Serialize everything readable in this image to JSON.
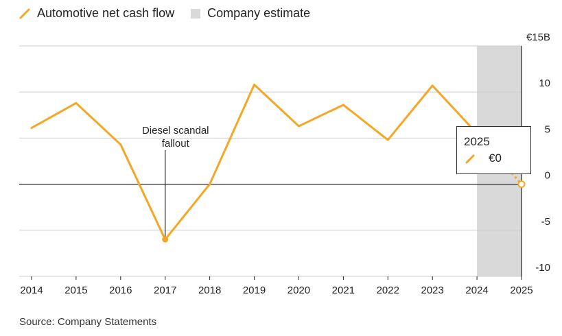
{
  "legend": {
    "series_label": "Automotive net cash flow",
    "estimate_label": "Company estimate"
  },
  "source": "Source: Company Statements",
  "tooltip": {
    "year": "2025",
    "value": "€0"
  },
  "colors": {
    "series": "#f5a623",
    "estimate_band": "#d9d9d9",
    "zero_line": "#222222",
    "grid": "#cccccc"
  },
  "chart_data": {
    "type": "line",
    "x": [
      2014,
      2015,
      2016,
      2017,
      2018,
      2019,
      2020,
      2021,
      2022,
      2023,
      2024,
      2025
    ],
    "series": [
      {
        "name": "Automotive net cash flow",
        "values": [
          6.1,
          8.8,
          4.3,
          -6.0,
          0,
          10.8,
          6.3,
          8.6,
          4.8,
          10.7,
          5.5,
          0
        ]
      }
    ],
    "estimate_range": [
      2024,
      2025
    ],
    "ylim": [
      -10,
      15
    ],
    "yticks": [
      -10,
      -5,
      0,
      5,
      10,
      15
    ],
    "ytick_labels": [
      "-10",
      "-5",
      "0",
      "5",
      "10",
      "€15B"
    ],
    "annotation": {
      "x": 2017,
      "text": "Diesel scandal fallout"
    },
    "grid": true
  }
}
